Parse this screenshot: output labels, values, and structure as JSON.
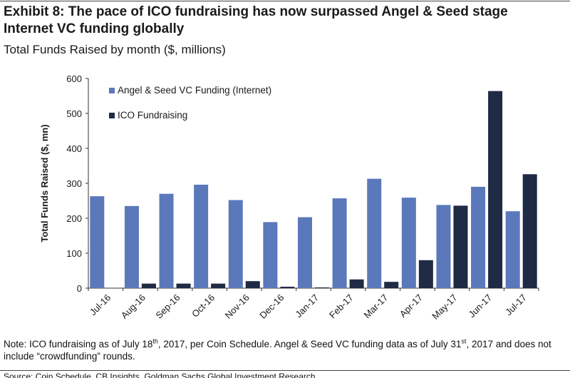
{
  "title": "Exhibit 8: The pace of ICO fundraising has now surpassed Angel & Seed stage Internet VC funding globally",
  "subtitle": "Total Funds Raised by month ($, millions)",
  "note_parts": {
    "a": "Note: ICO fundraising as of July 18",
    "a_sup": "th",
    "b": ", 2017, per Coin Schedule. Angel & Seed VC funding data as of July 31",
    "b_sup": "st",
    "c": ", 2017 and does not include “crowdfunding” rounds."
  },
  "source": "Source: Coin Schedule, CB Insights, Goldman Sachs Global Investment Research.",
  "chart_data": {
    "type": "bar",
    "title": "Total Funds Raised by month ($, millions)",
    "xlabel": "",
    "ylabel": "Total Funds Raised ($, mn)",
    "ylim": [
      0,
      600
    ],
    "yticks": [
      0,
      100,
      200,
      300,
      400,
      500,
      600
    ],
    "categories": [
      "Jul-16",
      "Aug-16",
      "Sep-16",
      "Oct-16",
      "Nov-16",
      "Dec-16",
      "Jan-17",
      "Feb-17",
      "Mar-17",
      "Apr-17",
      "May-17",
      "Jun-17",
      "Jul-17"
    ],
    "legend_position": "top-left",
    "series": [
      {
        "name": "Angel & Seed VC Funding (Internet)",
        "color": "#5b78bb",
        "values": [
          263,
          235,
          270,
          296,
          252,
          189,
          203,
          257,
          313,
          259,
          238,
          290,
          220
        ]
      },
      {
        "name": "ICO Fundraising",
        "color": "#1f2a44",
        "values": [
          0,
          13,
          13,
          13,
          20,
          4,
          2,
          25,
          18,
          80,
          236,
          564,
          326
        ]
      }
    ]
  }
}
